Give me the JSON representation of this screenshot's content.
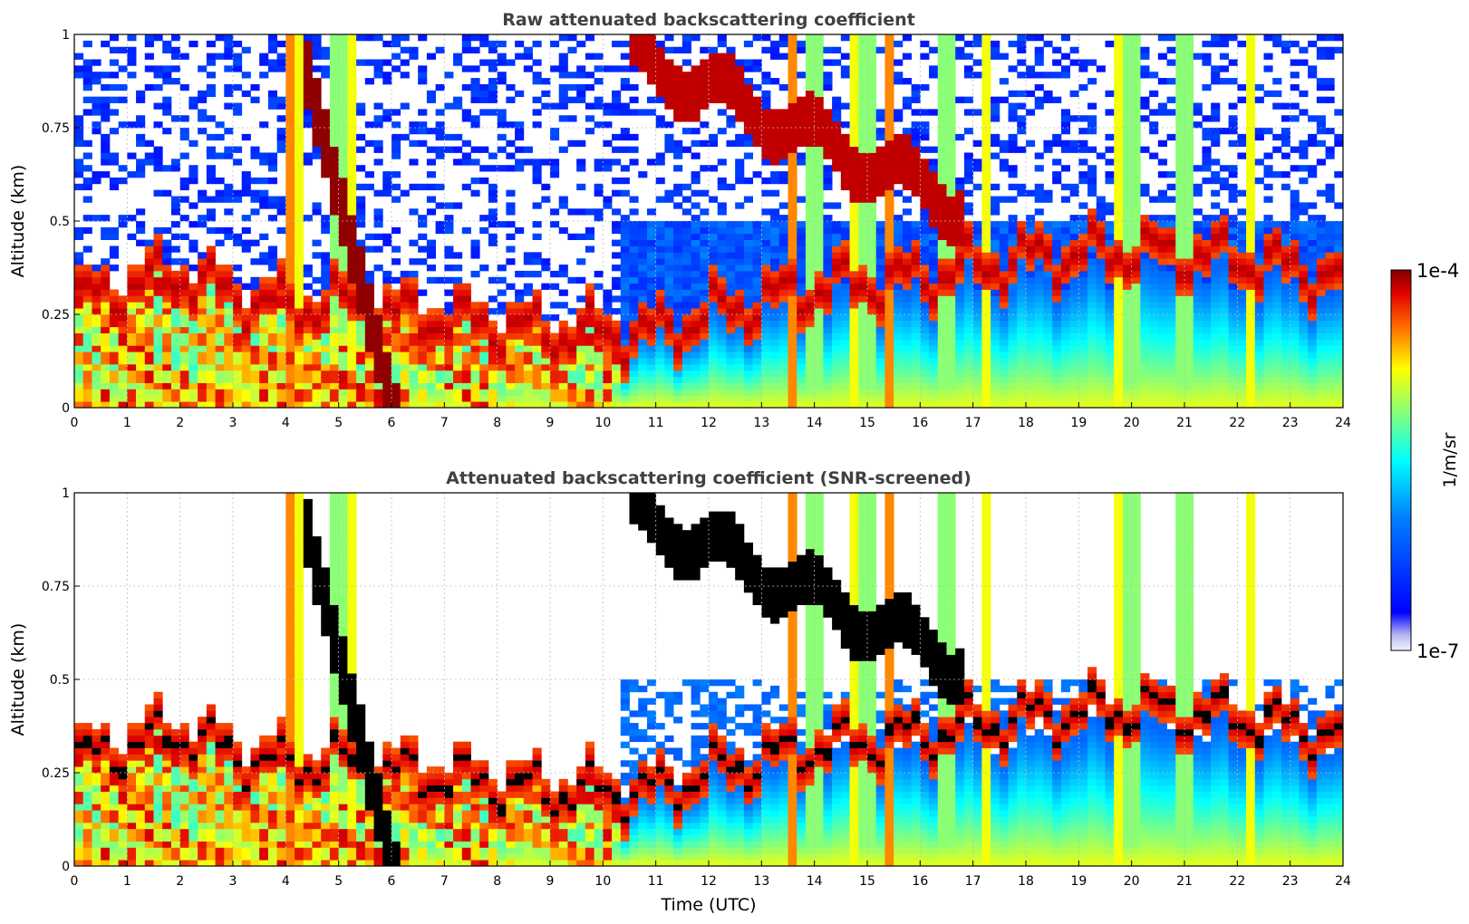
{
  "chart_data": [
    {
      "type": "heatmap",
      "title": "Raw attenuated backscattering coefficient",
      "xlabel": "",
      "ylabel": "Altitude (km)",
      "xlim": [
        0,
        24
      ],
      "ylim": [
        0,
        1
      ],
      "x_ticks": [
        "0",
        "1",
        "2",
        "3",
        "4",
        "5",
        "6",
        "7",
        "8",
        "9",
        "10",
        "11",
        "12",
        "13",
        "14",
        "15",
        "16",
        "17",
        "18",
        "19",
        "20",
        "21",
        "22",
        "23",
        "24"
      ],
      "y_ticks": [
        "0",
        "0.25",
        "0.5",
        "0.75",
        "1"
      ],
      "grid": true,
      "colormap": "jet",
      "color_scale": "log",
      "color_range": [
        1e-07,
        0.0001
      ],
      "screened": false,
      "boundary_layer_top_km": [
        [
          0,
          0.28
        ],
        [
          1,
          0.32
        ],
        [
          2,
          0.36
        ],
        [
          3,
          0.3
        ],
        [
          4,
          0.27
        ],
        [
          5,
          0.28
        ],
        [
          6,
          0.25
        ],
        [
          7,
          0.24
        ],
        [
          8,
          0.22
        ],
        [
          9,
          0.2
        ],
        [
          10,
          0.2
        ],
        [
          11,
          0.2
        ],
        [
          12,
          0.25
        ],
        [
          14,
          0.32
        ],
        [
          16,
          0.35
        ],
        [
          18,
          0.4
        ],
        [
          20,
          0.42
        ],
        [
          22,
          0.4
        ],
        [
          24,
          0.35
        ]
      ]
    },
    {
      "type": "heatmap",
      "title": "Attenuated backscattering coefficient (SNR-screened)",
      "xlabel": "Time (UTC)",
      "ylabel": "Altitude (km)",
      "xlim": [
        0,
        24
      ],
      "ylim": [
        0,
        1
      ],
      "x_ticks": [
        "0",
        "1",
        "2",
        "3",
        "4",
        "5",
        "6",
        "7",
        "8",
        "9",
        "10",
        "11",
        "12",
        "13",
        "14",
        "15",
        "16",
        "17",
        "18",
        "19",
        "20",
        "21",
        "22",
        "23",
        "24"
      ],
      "y_ticks": [
        "0",
        "0.25",
        "0.5",
        "0.75",
        "1"
      ],
      "grid": true,
      "colormap": "jet",
      "color_scale": "log",
      "color_range": [
        1e-07,
        0.0001
      ],
      "screened": true
    }
  ],
  "colorbar": {
    "label": "1/m/sr",
    "top_label": "1e-4",
    "bottom_label": "1e-7"
  }
}
